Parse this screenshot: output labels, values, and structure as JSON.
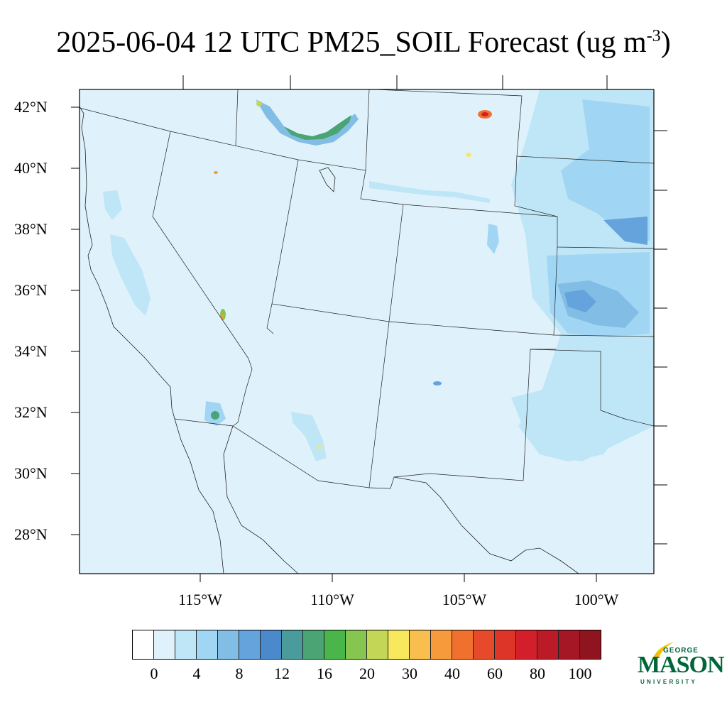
{
  "title": {
    "main": "2025-06-04 12 UTC PM25_SOIL Forecast (ug m",
    "superscript": "-3",
    "close": ")"
  },
  "map": {
    "background_color": "#dff2fb",
    "lat_labels": [
      "42°N",
      "40°N",
      "38°N",
      "36°N",
      "34°N",
      "32°N",
      "30°N",
      "28°N"
    ],
    "lon_labels": [
      "115°W",
      "110°W",
      "105°W",
      "100°W"
    ]
  },
  "colorbar": {
    "colors": [
      "#ffffff",
      "#dff2fb",
      "#bfe6f7",
      "#a0d6f3",
      "#82bde6",
      "#64a3dc",
      "#4a89cc",
      "#4a9b9c",
      "#4aa474",
      "#4ab54a",
      "#86c550",
      "#c3d655",
      "#f7e85e",
      "#f8be4e",
      "#f79a3c",
      "#f2702e",
      "#e64a2a",
      "#dd3527",
      "#d21f2b",
      "#bb1a27",
      "#a51725",
      "#8f1420"
    ],
    "labels": [
      "0",
      "4",
      "8",
      "12",
      "16",
      "20",
      "30",
      "40",
      "60",
      "80",
      "100"
    ]
  },
  "logo": {
    "line1": "GEORGE",
    "line2": "MASON",
    "line3": "UNIVERSITY",
    "primary_color": "#00663a",
    "accent_color": "#f2c200"
  }
}
